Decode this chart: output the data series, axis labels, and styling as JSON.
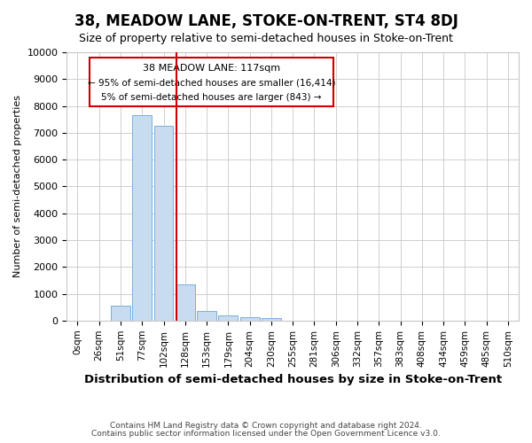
{
  "title": "38, MEADOW LANE, STOKE-ON-TRENT, ST4 8DJ",
  "subtitle": "Size of property relative to semi-detached houses in Stoke-on-Trent",
  "xlabel": "Distribution of semi-detached houses by size in Stoke-on-Trent",
  "ylabel": "Number of semi-detached properties",
  "footnote1": "Contains HM Land Registry data © Crown copyright and database right 2024.",
  "footnote2": "Contains public sector information licensed under the Open Government Licence v3.0.",
  "bar_labels": [
    "0sqm",
    "26sqm",
    "51sqm",
    "77sqm",
    "102sqm",
    "128sqm",
    "153sqm",
    "179sqm",
    "204sqm",
    "230sqm",
    "255sqm",
    "281sqm",
    "306sqm",
    "332sqm",
    "357sqm",
    "383sqm",
    "408sqm",
    "434sqm",
    "459sqm",
    "485sqm",
    "510sqm"
  ],
  "bar_values": [
    0,
    0,
    550,
    7650,
    7250,
    1350,
    350,
    200,
    130,
    80,
    0,
    0,
    0,
    0,
    0,
    0,
    0,
    0,
    0,
    0,
    0
  ],
  "bar_color": "#c8dcf0",
  "bar_edgecolor": "#7aaedb",
  "property_label": "38 MEADOW LANE: 117sqm",
  "smaller_pct": 95,
  "smaller_count": 16414,
  "larger_pct": 5,
  "larger_count": 843,
  "vline_color": "#cc0000",
  "annotation_box_color": "#cc0000",
  "ylim": [
    0,
    10000
  ],
  "yticks": [
    0,
    1000,
    2000,
    3000,
    4000,
    5000,
    6000,
    7000,
    8000,
    9000,
    10000
  ],
  "grid_color": "#c8c8c8",
  "bg_color": "#ffffff",
  "title_fontsize": 12,
  "subtitle_fontsize": 9
}
